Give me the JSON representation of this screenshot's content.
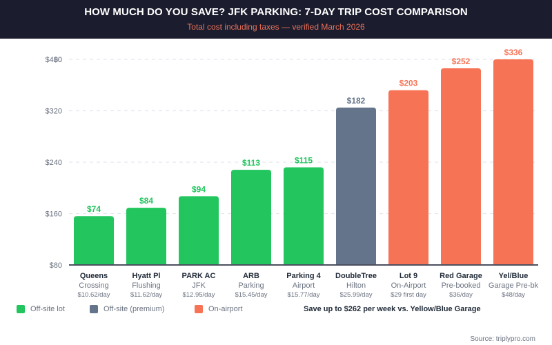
{
  "header": {
    "title": "HOW MUCH DO YOU SAVE? JFK PARKING: 7-DAY TRIP COST COMPARISON",
    "subtitle": "Total cost including taxes — verified March 2026"
  },
  "colors": {
    "header_bg": "#1b1d2e",
    "off_site": "#22c55e",
    "off_site_premium": "#64748b",
    "on_airport": "#f77355"
  },
  "chart_data": {
    "type": "bar",
    "title": "HOW MUCH DO YOU SAVE? JFK PARKING: 7-DAY TRIP COST COMPARISON",
    "subtitle": "Total cost including taxes — verified March 2026",
    "xlabel": "",
    "ylabel": "",
    "y_ticks": [
      "$80",
      "$160",
      "$240",
      "$320",
      "$400"
    ],
    "y_tick_overlap_label": "$0",
    "ylim": [
      80,
      400
    ],
    "grid": true,
    "categories": [
      {
        "name": "Queens",
        "sub": "Crossing",
        "rate": "$10.62/day",
        "value": 74,
        "label": "$74",
        "group": "off_site",
        "bar_top_axis_value": 156
      },
      {
        "name": "Hyatt Pl",
        "sub": "Flushing",
        "rate": "$11.62/day",
        "value": 84,
        "label": "$84",
        "group": "off_site",
        "bar_top_axis_value": 169
      },
      {
        "name": "PARK AC",
        "sub": "JFK",
        "rate": "$12.95/day",
        "value": 94,
        "label": "$94",
        "group": "off_site",
        "bar_top_axis_value": 187
      },
      {
        "name": "ARB",
        "sub": "Parking",
        "rate": "$15.45/day",
        "value": 113,
        "label": "$113",
        "group": "off_site",
        "bar_top_axis_value": 228
      },
      {
        "name": "Parking 4",
        "sub": "Airport",
        "rate": "$15.77/day",
        "value": 115,
        "label": "$115",
        "group": "off_site",
        "bar_top_axis_value": 232
      },
      {
        "name": "DoubleTree",
        "sub": "Hilton",
        "rate": "$25.99/day",
        "value": 182,
        "label": "$182",
        "group": "off_site_premium",
        "bar_top_axis_value": 325
      },
      {
        "name": "Lot 9",
        "sub": "On-Airport",
        "rate": "$29 first day",
        "value": 203,
        "label": "$203",
        "group": "on_airport",
        "bar_top_axis_value": 352
      },
      {
        "name": "Red Garage",
        "sub": "Pre-booked",
        "rate": "$36/day",
        "value": 252,
        "label": "$252",
        "group": "on_airport",
        "bar_top_axis_value": 386
      },
      {
        "name": "Yel/Blue",
        "sub": "Garage Pre-bk",
        "rate": "$48/day",
        "value": 336,
        "label": "$336",
        "group": "on_airport",
        "bar_top_axis_value": 400
      }
    ],
    "legend": [
      {
        "label": "Off-site lot",
        "group": "off_site"
      },
      {
        "label": "Off-site (premium)",
        "group": "off_site_premium"
      },
      {
        "label": "On-airport",
        "group": "on_airport"
      }
    ],
    "legend_position": "bottom-left",
    "annotation": "Save up to $262 per week vs. Yellow/Blue Garage"
  },
  "footer": {
    "source": "Source: triplypro.com"
  }
}
